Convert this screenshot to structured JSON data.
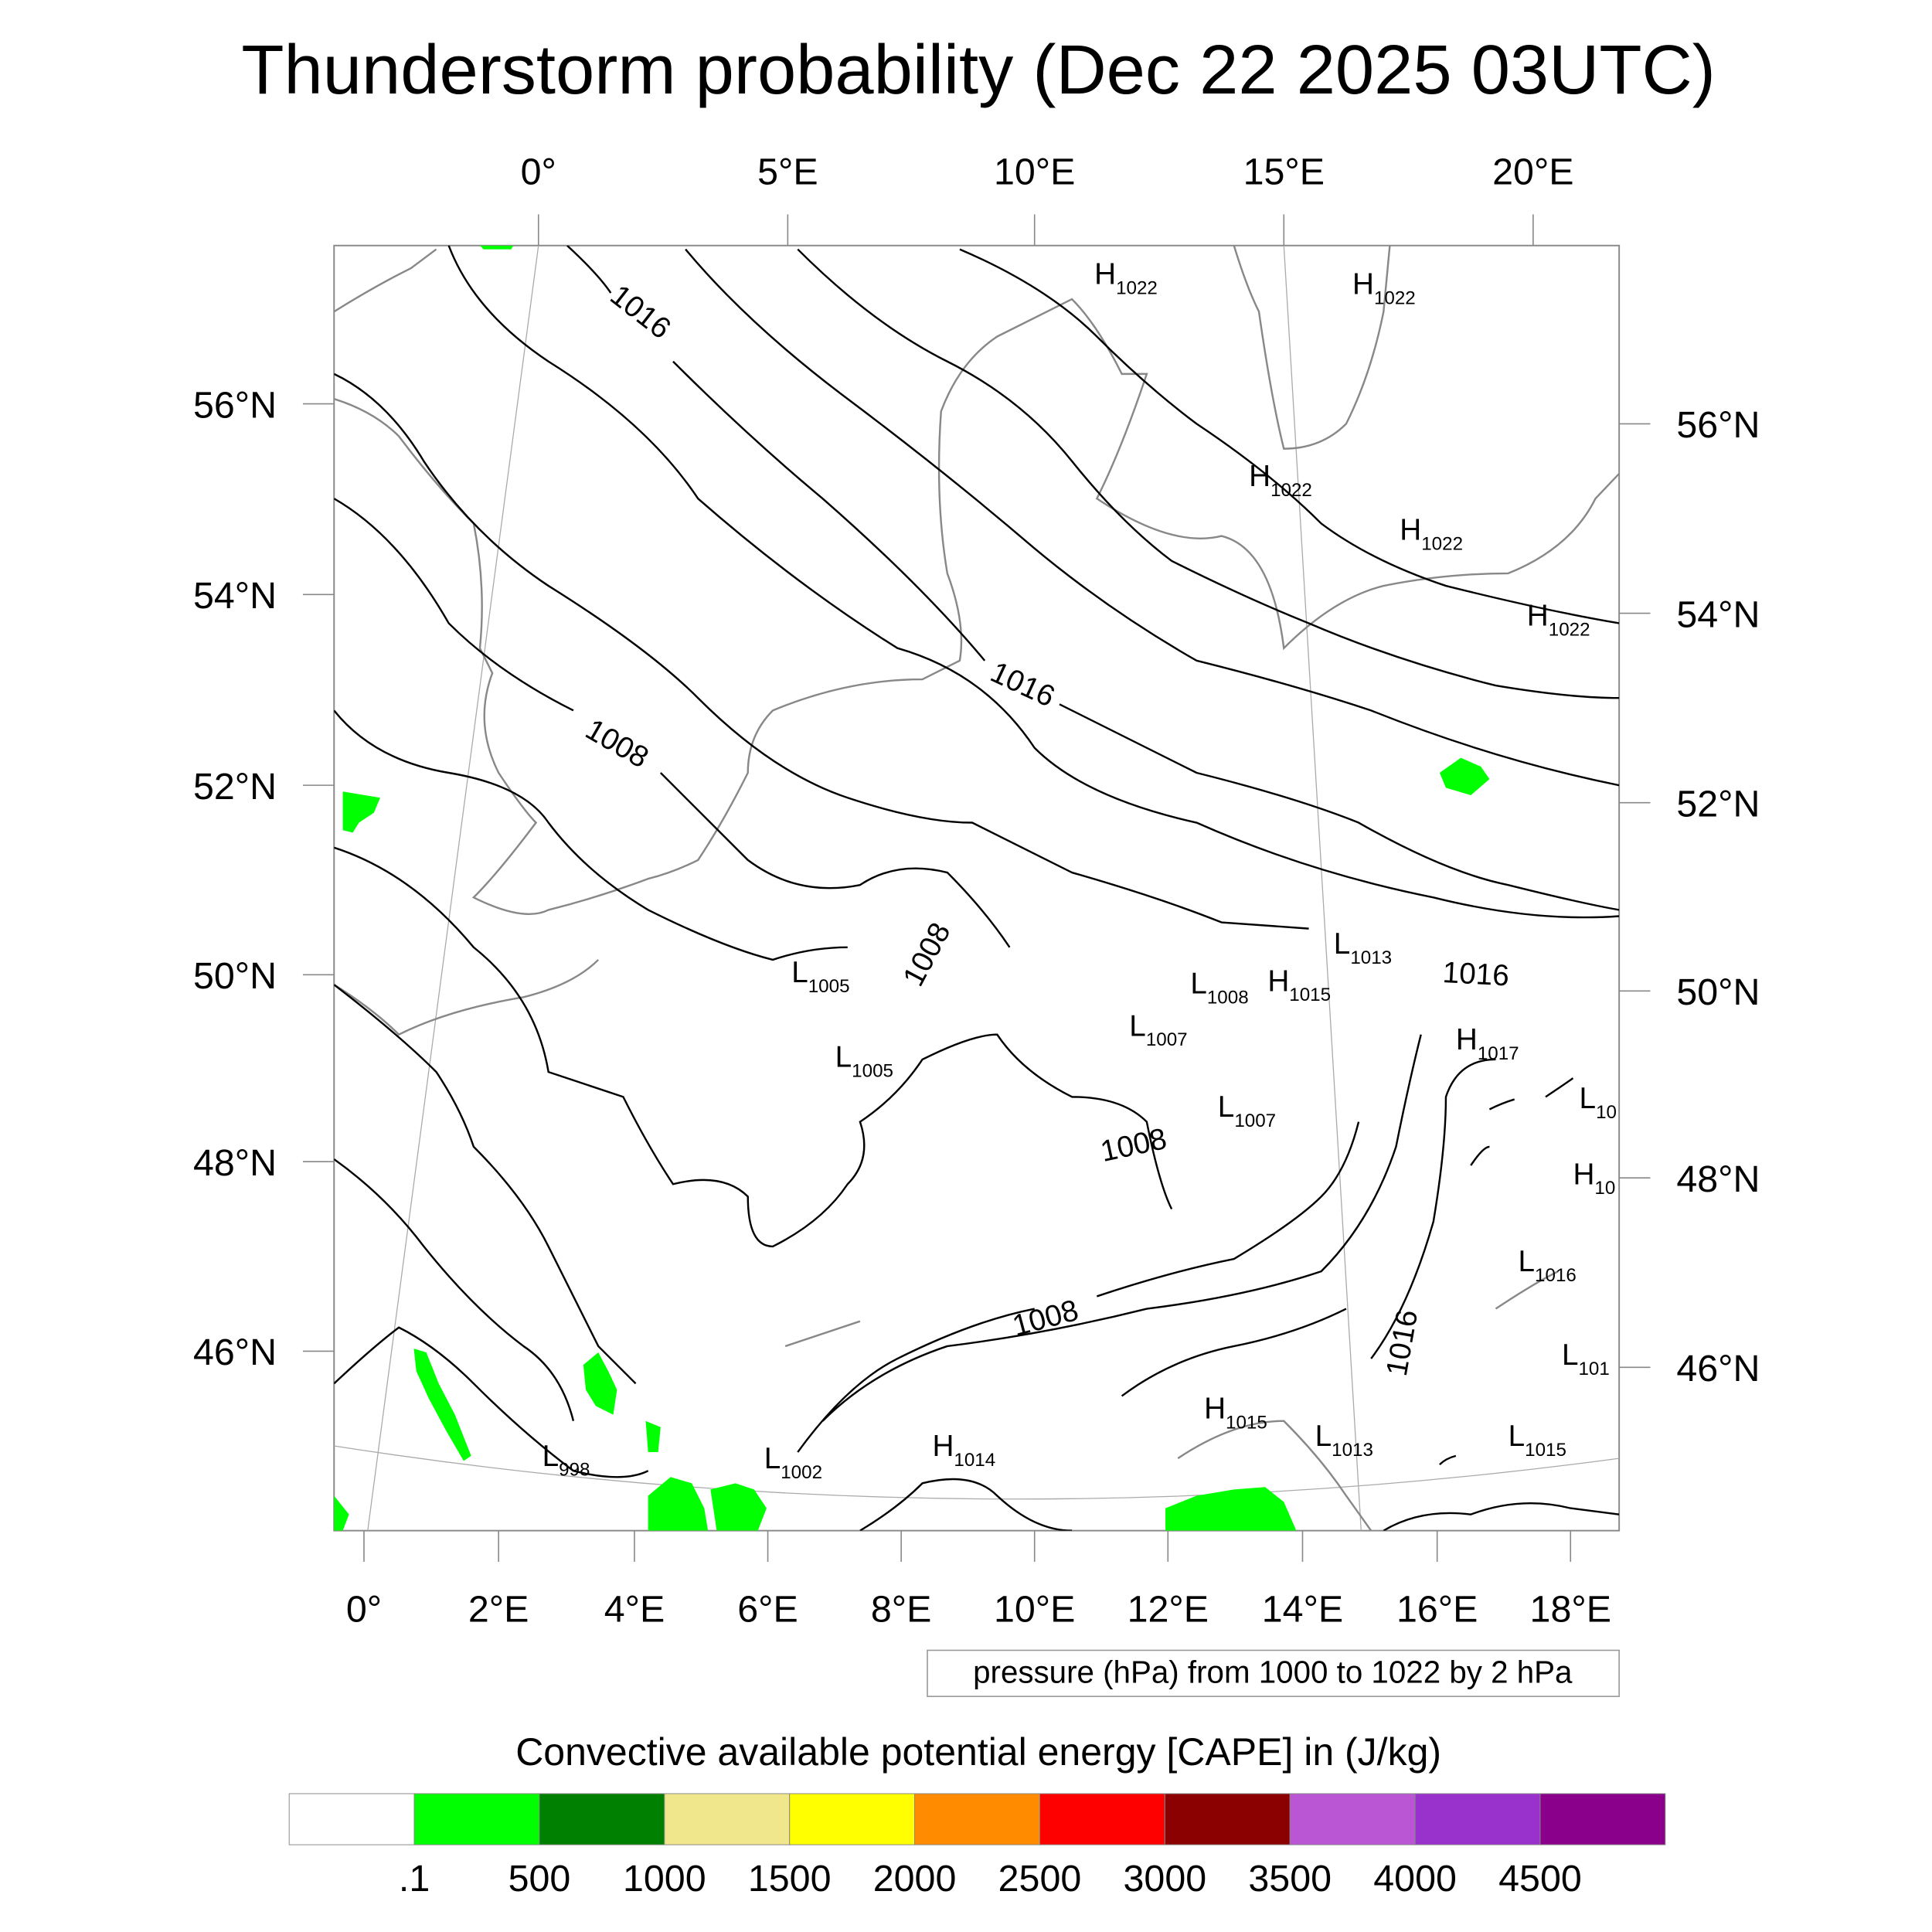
{
  "title": "Thunderstorm probability (Dec 22 2025 03UTC)",
  "map": {
    "top_lon_labels": [
      "0°",
      "5°E",
      "10°E",
      "15°E",
      "20°E"
    ],
    "bottom_lon_labels": [
      "0°",
      "2°E",
      "4°E",
      "6°E",
      "8°E",
      "10°E",
      "12°E",
      "14°E",
      "16°E",
      "18°E"
    ],
    "left_lat_labels": [
      "56°N",
      "54°N",
      "52°N",
      "50°N",
      "48°N",
      "46°N"
    ],
    "right_lat_labels": [
      "56°N",
      "54°N",
      "52°N",
      "50°N",
      "48°N",
      "46°N"
    ],
    "contour_labels": [
      "1016",
      "1016",
      "1008",
      "1008",
      "1008",
      "1008",
      "1016",
      "1016"
    ],
    "pressure_centers": [
      {
        "type": "H",
        "value": "1022"
      },
      {
        "type": "H",
        "value": "1022"
      },
      {
        "type": "H",
        "value": "1022"
      },
      {
        "type": "H",
        "value": "1022"
      },
      {
        "type": "H",
        "value": "1022"
      },
      {
        "type": "L",
        "value": "1013"
      },
      {
        "type": "L",
        "value": "1008"
      },
      {
        "type": "H",
        "value": "1015"
      },
      {
        "type": "L",
        "value": "1005"
      },
      {
        "type": "L",
        "value": "1007"
      },
      {
        "type": "L",
        "value": "1005"
      },
      {
        "type": "H",
        "value": "1017"
      },
      {
        "type": "L",
        "value": "1007"
      },
      {
        "type": "L",
        "value": "10"
      },
      {
        "type": "H",
        "value": "10"
      },
      {
        "type": "L",
        "value": "1016"
      },
      {
        "type": "L",
        "value": "101"
      },
      {
        "type": "H",
        "value": "1015"
      },
      {
        "type": "L",
        "value": "1013"
      },
      {
        "type": "L",
        "value": "1015"
      },
      {
        "type": "L",
        "value": "998"
      },
      {
        "type": "L",
        "value": "1002"
      },
      {
        "type": "H",
        "value": "1014"
      }
    ]
  },
  "contour_note": "pressure (hPa) from 1000 to 1022 by 2 hPa",
  "chart_data": {
    "type": "heatmap",
    "title": "Thunderstorm probability (Dec 22 2025 03UTC)",
    "contour_variable": "pressure (hPa)",
    "contour_range": [
      1000,
      1022
    ],
    "contour_interval": 2,
    "lon_range": [
      0,
      19
    ],
    "lat_range": [
      44.5,
      57.5
    ],
    "colorbar": {
      "title": "Convective available potential energy [CAPE] in (J/kg)",
      "labels": [
        ".1",
        "500",
        "1000",
        "1500",
        "2000",
        "2500",
        "3000",
        "3500",
        "4000",
        "4500"
      ],
      "colors": [
        "#ffffff",
        "#00ff00",
        "#008000",
        "#f0e68c",
        "#ffff00",
        "#ff8c00",
        "#ff0000",
        "#8b0000",
        "#ba55d3",
        "#9932cc",
        "#8b008b"
      ]
    }
  }
}
